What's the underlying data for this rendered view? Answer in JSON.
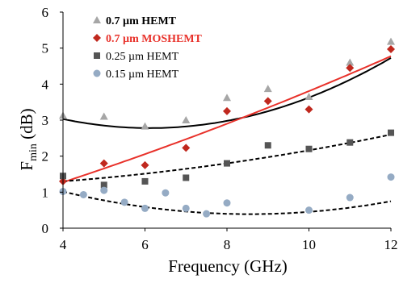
{
  "chart_data": {
    "type": "scatter",
    "title": "",
    "xlabel": "Frequency (GHz)",
    "ylabel_main": "F",
    "ylabel_sub": "min",
    "ylabel_unit": " (dB)",
    "xlim": [
      4,
      12
    ],
    "ylim": [
      0,
      6
    ],
    "xticks": [
      "4",
      "6",
      "8",
      "10",
      "12"
    ],
    "yticks": [
      "0",
      "1",
      "2",
      "3",
      "4",
      "5",
      "6"
    ],
    "grid": false,
    "legend_position": "top-left",
    "series": [
      {
        "name": "0.7 µm HEMT",
        "marker": "triangle",
        "color": "#a6a6a6",
        "label_color": "#000000",
        "label_bold": true,
        "fit": {
          "style": "solid",
          "color": "#000000",
          "coeffs": [
            4.883,
            -0.688,
            0.05625
          ]
        },
        "points": [
          [
            4,
            3.13
          ],
          [
            5,
            3.1
          ],
          [
            6,
            2.83
          ],
          [
            7,
            3.0
          ],
          [
            8,
            3.62
          ],
          [
            9,
            3.87
          ],
          [
            10,
            3.65
          ],
          [
            11,
            4.6
          ],
          [
            12,
            5.18
          ]
        ]
      },
      {
        "name": "0.7 µm MOSHEMT",
        "marker": "diamond",
        "color": "#c0281e",
        "label_color": "#e8312a",
        "label_bold": true,
        "fit": {
          "style": "solid",
          "color": "#e8312a",
          "coeffs": [
            -0.1,
            0.3125,
            0.0078125
          ]
        },
        "points": [
          [
            4,
            1.3
          ],
          [
            5,
            1.8
          ],
          [
            6,
            1.75
          ],
          [
            7,
            2.23
          ],
          [
            8,
            3.25
          ],
          [
            9,
            3.53
          ],
          [
            10,
            3.3
          ],
          [
            11,
            4.45
          ],
          [
            12,
            4.97
          ]
        ]
      },
      {
        "name": "0.25 µm HEMT",
        "marker": "square",
        "color": "#555555",
        "label_color": "#000000",
        "label_bold": false,
        "fit": {
          "style": "dashed",
          "color": "#000000",
          "coeffs": [
            1.1,
            0.0125,
            0.009375
          ]
        },
        "points": [
          [
            4,
            1.45
          ],
          [
            5,
            1.2
          ],
          [
            6,
            1.3
          ],
          [
            7,
            1.4
          ],
          [
            8,
            1.8
          ],
          [
            9,
            2.3
          ],
          [
            10,
            2.2
          ],
          [
            11,
            2.38
          ],
          [
            12,
            2.65
          ]
        ]
      },
      {
        "name": "0.15 µm HEMT",
        "marker": "circle",
        "color": "#95abc4",
        "label_color": "#000000",
        "label_bold": false,
        "fit": {
          "style": "dashed",
          "color": "#000000",
          "coeffs": [
            2.6,
            -0.5167,
            0.0302
          ]
        },
        "points": [
          [
            4,
            1.02
          ],
          [
            4.5,
            0.93
          ],
          [
            5,
            1.05
          ],
          [
            5.5,
            0.72
          ],
          [
            6,
            0.55
          ],
          [
            6.5,
            0.98
          ],
          [
            7,
            0.55
          ],
          [
            7.5,
            0.4
          ],
          [
            8,
            0.7
          ],
          [
            10,
            0.5
          ],
          [
            11,
            0.85
          ],
          [
            12,
            1.42
          ]
        ]
      }
    ]
  }
}
